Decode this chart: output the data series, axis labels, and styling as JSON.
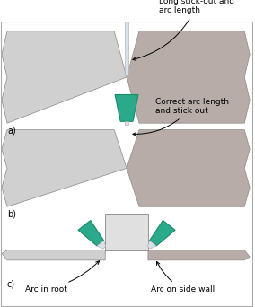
{
  "bg_color": "#f0f0f0",
  "teal_color": "#2aaa8a",
  "teal_dark": "#1a8a6a",
  "metal_light": "#d0d0d0",
  "metal_mid": "#b8aca8",
  "rod_color": "#d8e0e8",
  "label_a": "a)",
  "label_b": "b)",
  "label_c": "c)",
  "text1_line1": "Long stick-out and",
  "text1_line2": "arc length",
  "text2_line1": "Correct arc length",
  "text2_line2": "and stick out",
  "text3_left": "Arc in root",
  "text3_right": "Arc on side wall",
  "font_size": 7.0,
  "border_color": "#888888",
  "figure_bg": "#ffffff"
}
